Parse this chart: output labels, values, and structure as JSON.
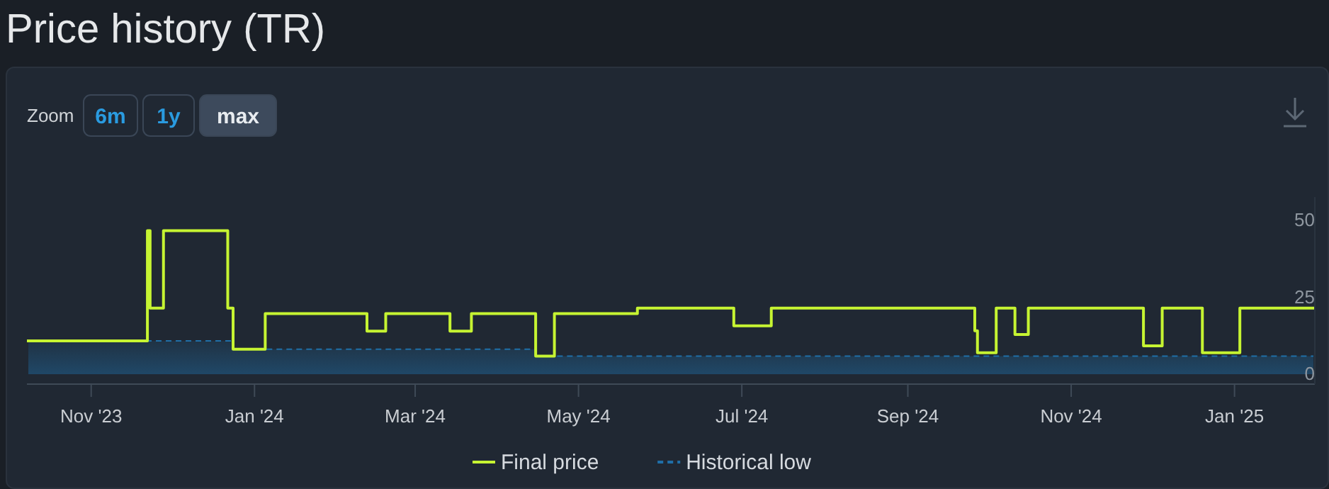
{
  "chart_data": {
    "type": "step",
    "title": "Price history (TR)",
    "annotations": [
      "Zoom",
      "6m",
      "1y",
      "max"
    ],
    "xlim": [
      "2023-10-08",
      "2025-01-31"
    ],
    "xticks": [
      {
        "value": "2023-11-01",
        "label": "Nov '23"
      },
      {
        "value": "2024-01-01",
        "label": "Jan '24"
      },
      {
        "value": "2024-03-01",
        "label": "Mar '24"
      },
      {
        "value": "2024-05-01",
        "label": "May '24"
      },
      {
        "value": "2024-07-01",
        "label": "Jul '24"
      },
      {
        "value": "2024-09-01",
        "label": "Sep '24"
      },
      {
        "value": "2024-11-01",
        "label": "Nov '24"
      },
      {
        "value": "2025-01-01",
        "label": "Jan '25"
      }
    ],
    "ylim": [
      -3,
      58
    ],
    "yticks": [
      0,
      25,
      50
    ],
    "legend": "bottom",
    "series": [
      {
        "name": "Final price",
        "color": "#c6f432",
        "x": [
          "2023-10-08",
          "2023-11-22",
          "2023-11-23",
          "2023-11-28",
          "2023-12-22",
          "2023-12-24",
          "2024-01-05",
          "2024-02-12",
          "2024-02-19",
          "2024-03-14",
          "2024-03-22",
          "2024-04-15",
          "2024-04-22",
          "2024-05-23",
          "2024-06-28",
          "2024-07-12",
          "2024-09-26",
          "2024-09-27",
          "2024-10-04",
          "2024-10-11",
          "2024-10-16",
          "2024-11-28",
          "2024-12-05",
          "2024-12-20",
          "2025-01-03",
          "2025-01-31"
        ],
        "values": [
          11.1,
          47,
          21.8,
          47,
          21.8,
          8.4,
          20,
          14.3,
          20,
          14.3,
          20,
          6.1,
          20,
          21.8,
          16,
          21.8,
          14.4,
          7.2,
          21.8,
          13.2,
          21.8,
          9.5,
          21.8,
          7.2,
          21.8,
          21.8
        ]
      },
      {
        "name": "Historical low",
        "type": "area",
        "color": "#1f6fa8",
        "line_style": "dashed",
        "x": [
          "2023-10-08",
          "2023-12-24",
          "2024-04-15",
          "2025-01-31"
        ],
        "values": [
          11.1,
          8.4,
          6.1,
          6.1
        ]
      }
    ]
  }
}
